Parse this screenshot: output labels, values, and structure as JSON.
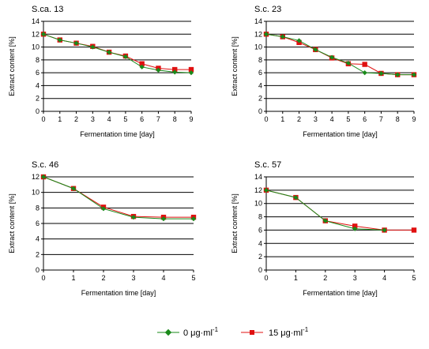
{
  "chart_data": [
    {
      "type": "line",
      "title": "S.ca. 13",
      "xlabel": "Fermentation time [day]",
      "ylabel": "Extract content [%]",
      "xlim": [
        0,
        9
      ],
      "ylim": [
        0,
        14
      ],
      "x": [
        0,
        1,
        2,
        3,
        4,
        5,
        6,
        7,
        8,
        9
      ],
      "xticks": [
        "0",
        "1",
        "2",
        "3",
        "4",
        "5",
        "6",
        "7",
        "8",
        "9"
      ],
      "yticks": [
        "0",
        "2",
        "4",
        "6",
        "8",
        "10",
        "12",
        "14"
      ],
      "grid": "horizontal",
      "series": [
        {
          "name": "0 μg·ml⁻¹",
          "values": [
            12.0,
            11.1,
            10.6,
            10.0,
            9.2,
            8.5,
            6.9,
            6.4,
            6.1,
            6.0
          ]
        },
        {
          "name": "15 μg·ml⁻¹",
          "values": [
            12.0,
            11.1,
            10.6,
            10.1,
            9.2,
            8.6,
            7.4,
            6.7,
            6.5,
            6.5
          ]
        }
      ]
    },
    {
      "type": "line",
      "title": "S.c. 23",
      "xlabel": "Fermentation time [day]",
      "ylabel": "Extract content [%]",
      "xlim": [
        0,
        9
      ],
      "ylim": [
        0,
        14
      ],
      "x": [
        0,
        1,
        2,
        3,
        4,
        5,
        6,
        7,
        8,
        9
      ],
      "xticks": [
        "0",
        "1",
        "2",
        "3",
        "4",
        "5",
        "6",
        "7",
        "8",
        "9"
      ],
      "yticks": [
        "0",
        "2",
        "4",
        "6",
        "8",
        "10",
        "12",
        "14"
      ],
      "grid": "horizontal",
      "series": [
        {
          "name": "0 μg·ml⁻¹",
          "values": [
            12.0,
            11.6,
            11.0,
            9.6,
            8.4,
            7.5,
            6.0,
            5.9,
            5.7,
            5.7
          ]
        },
        {
          "name": "15 μg·ml⁻¹",
          "values": [
            12.0,
            11.6,
            10.7,
            9.6,
            8.3,
            7.4,
            7.3,
            5.9,
            5.7,
            5.7
          ]
        }
      ]
    },
    {
      "type": "line",
      "title": "S.c. 46",
      "xlabel": "Fermentation time [day]",
      "ylabel": "Extract content [%]",
      "xlim": [
        0,
        5
      ],
      "ylim": [
        0,
        12
      ],
      "x": [
        0,
        1,
        2,
        3,
        4,
        5
      ],
      "xticks": [
        "0",
        "1",
        "2",
        "3",
        "4",
        "5"
      ],
      "yticks": [
        "0",
        "2",
        "4",
        "6",
        "8",
        "10",
        "12"
      ],
      "grid": "horizontal",
      "series": [
        {
          "name": "0 μg·ml⁻¹",
          "values": [
            12.0,
            10.5,
            7.9,
            6.8,
            6.6,
            6.6
          ]
        },
        {
          "name": "15 μg·ml⁻¹",
          "values": [
            12.0,
            10.5,
            8.1,
            6.9,
            6.8,
            6.8
          ]
        }
      ]
    },
    {
      "type": "line",
      "title": "S.c. 57",
      "xlabel": "Fermentation time [day]",
      "ylabel": "Extract content [%]",
      "xlim": [
        0,
        5
      ],
      "ylim": [
        0,
        14
      ],
      "x": [
        0,
        1,
        2,
        3,
        4,
        5
      ],
      "xticks": [
        "0",
        "1",
        "2",
        "3",
        "4",
        "5"
      ],
      "yticks": [
        "0",
        "2",
        "4",
        "6",
        "8",
        "10",
        "12",
        "14"
      ],
      "grid": "horizontal",
      "series": [
        {
          "name": "0 μg·ml⁻¹",
          "x": [
            0,
            1,
            2,
            3,
            4
          ],
          "values": [
            12.0,
            10.9,
            7.4,
            6.2,
            6.0
          ]
        },
        {
          "name": "15 μg·ml⁻¹",
          "x": [
            0,
            1,
            2,
            3,
            4,
            5
          ],
          "values": [
            12.0,
            10.9,
            7.4,
            6.6,
            6.0,
            6.0
          ]
        }
      ]
    }
  ],
  "legend": {
    "placement": "bottom-center",
    "items": [
      {
        "label": "0 μg·ml",
        "sup": "-1",
        "color": "#1a8a1a",
        "marker": "diamond"
      },
      {
        "label": "15 μg·ml",
        "sup": "-1",
        "color": "#e01010",
        "marker": "square"
      }
    ]
  },
  "colors": {
    "series_0": "#1a8a1a",
    "series_1": "#e01010",
    "grid": "#000000"
  }
}
